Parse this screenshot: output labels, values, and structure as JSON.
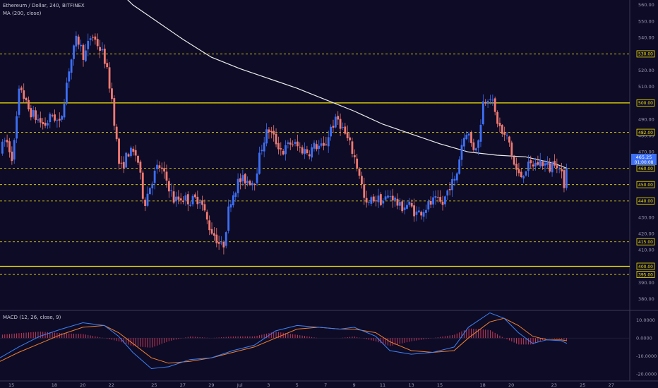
{
  "header": {
    "symbol": "Ethereum / Dollar, 240, BITFINEX",
    "indicator": "MA (200, close)"
  },
  "macd_panel": {
    "label": "MACD (12, 26, close, 9)"
  },
  "colors": {
    "background": "#0e0b26",
    "up_candle": "#3d6ff5",
    "down_candle": "#f07a72",
    "ma_line": "#ececec",
    "yellow_level": "#f2e300",
    "macd_line": "#3b82f6",
    "signal_line": "#f08030",
    "histogram": "#c83a5a"
  },
  "chart_data": [
    {
      "type": "candlestick",
      "title": "Ethereum / Dollar, 240, BITFINEX",
      "ylim": [
        373,
        563
      ],
      "y_ticks": [
        380,
        390,
        400,
        410,
        420,
        430,
        440,
        450,
        460,
        470,
        480,
        490,
        500,
        510,
        520,
        530,
        540,
        550,
        560
      ],
      "x_ticks": [
        "15",
        "18",
        "20",
        "22",
        "25",
        "27",
        "29",
        "Jul",
        "3",
        "5",
        "7",
        "9",
        "11",
        "13",
        "15",
        "18",
        "20",
        "23",
        "25",
        "27"
      ],
      "x_tick_days": [
        15,
        18,
        20,
        22,
        25,
        27,
        29,
        31,
        33,
        35,
        37,
        39,
        41,
        43,
        45,
        48,
        50,
        53,
        55,
        57
      ],
      "x_range_days": [
        14.2,
        58.3
      ],
      "last_day": 53.9,
      "current_price": "465.25",
      "countdown": "01:00:08",
      "price_anchors": [
        [
          14.2,
          470
        ],
        [
          14.6,
          478
        ],
        [
          15.1,
          466
        ],
        [
          15.6,
          512
        ],
        [
          16.1,
          497
        ],
        [
          16.6,
          492
        ],
        [
          17.3,
          486
        ],
        [
          17.9,
          493
        ],
        [
          18.4,
          486
        ],
        [
          19.0,
          520
        ],
        [
          19.6,
          540
        ],
        [
          20.1,
          528
        ],
        [
          20.6,
          542
        ],
        [
          21.1,
          535
        ],
        [
          21.5,
          528
        ],
        [
          22.0,
          505
        ],
        [
          22.6,
          458
        ],
        [
          23.2,
          470
        ],
        [
          23.8,
          468
        ],
        [
          24.3,
          438
        ],
        [
          24.8,
          452
        ],
        [
          25.3,
          462
        ],
        [
          25.9,
          452
        ],
        [
          26.4,
          440
        ],
        [
          26.9,
          442
        ],
        [
          27.6,
          440
        ],
        [
          28.2,
          442
        ],
        [
          28.8,
          425
        ],
        [
          29.3,
          418
        ],
        [
          29.8,
          410
        ],
        [
          30.3,
          440
        ],
        [
          30.9,
          452
        ],
        [
          31.4,
          453
        ],
        [
          32.0,
          452
        ],
        [
          32.6,
          476
        ],
        [
          33.0,
          484
        ],
        [
          33.4,
          478
        ],
        [
          34.0,
          470
        ],
        [
          34.6,
          476
        ],
        [
          35.2,
          472
        ],
        [
          35.8,
          470
        ],
        [
          36.3,
          474
        ],
        [
          36.9,
          472
        ],
        [
          37.4,
          486
        ],
        [
          37.9,
          490
        ],
        [
          38.4,
          480
        ],
        [
          38.9,
          470
        ],
        [
          39.4,
          456
        ],
        [
          39.8,
          436
        ],
        [
          40.4,
          442
        ],
        [
          41.0,
          440
        ],
        [
          41.6,
          444
        ],
        [
          42.2,
          436
        ],
        [
          42.8,
          438
        ],
        [
          43.4,
          432
        ],
        [
          44.0,
          436
        ],
        [
          44.6,
          440
        ],
        [
          45.2,
          438
        ],
        [
          45.7,
          450
        ],
        [
          46.1,
          452
        ],
        [
          46.5,
          474
        ],
        [
          46.9,
          484
        ],
        [
          47.3,
          472
        ],
        [
          47.7,
          476
        ],
        [
          48.0,
          500
        ],
        [
          48.5,
          506
        ],
        [
          48.9,
          492
        ],
        [
          49.4,
          480
        ],
        [
          49.8,
          478
        ],
        [
          50.2,
          462
        ],
        [
          50.6,
          454
        ],
        [
          51.0,
          460
        ],
        [
          51.5,
          462
        ],
        [
          52.1,
          464
        ],
        [
          52.7,
          460
        ],
        [
          53.1,
          466
        ],
        [
          53.4,
          458
        ],
        [
          53.7,
          451
        ],
        [
          53.9,
          465
        ]
      ],
      "ma200": [
        [
          22.8,
          566
        ],
        [
          23.5,
          560
        ],
        [
          25,
          551
        ],
        [
          27,
          539
        ],
        [
          29,
          528
        ],
        [
          31,
          521
        ],
        [
          33,
          515
        ],
        [
          35,
          509
        ],
        [
          37,
          502
        ],
        [
          39,
          495
        ],
        [
          41,
          487
        ],
        [
          43,
          481
        ],
        [
          45,
          475
        ],
        [
          47,
          470
        ],
        [
          49,
          468
        ],
        [
          51,
          467
        ],
        [
          53,
          463
        ],
        [
          53.9,
          460
        ]
      ],
      "levels": [
        {
          "value": 530,
          "label": "530.00",
          "style": "dashed"
        },
        {
          "value": 500,
          "label": "500.00",
          "style": "solid"
        },
        {
          "value": 482,
          "label": "482.00",
          "style": "dashed"
        },
        {
          "value": 460,
          "label": "460.00",
          "style": "dashed"
        },
        {
          "value": 450,
          "label": "450.00",
          "style": "dashed"
        },
        {
          "value": 440,
          "label": "440.00",
          "style": "dashed"
        },
        {
          "value": 415,
          "label": "415.00",
          "style": "dashed"
        },
        {
          "value": 400,
          "label": "400.00",
          "style": "solid"
        },
        {
          "value": 395,
          "label": "395.00",
          "style": "dashed"
        }
      ]
    },
    {
      "type": "line",
      "title": "MACD (12, 26, close, 9)",
      "ylim": [
        -23.5,
        15
      ],
      "y_ticks": [
        10,
        0,
        -10,
        -20
      ],
      "y_tick_labels": [
        "10.0000",
        "0.0000",
        "-10.0000",
        "-20.0000"
      ],
      "macd": [
        [
          14.2,
          -11
        ],
        [
          15.5,
          -5
        ],
        [
          17,
          1
        ],
        [
          18.5,
          5
        ],
        [
          20,
          8.5
        ],
        [
          21.5,
          7
        ],
        [
          22.5,
          1
        ],
        [
          23.5,
          -8
        ],
        [
          24.8,
          -17
        ],
        [
          26,
          -16
        ],
        [
          27.5,
          -12
        ],
        [
          29,
          -11
        ],
        [
          30.5,
          -7
        ],
        [
          32,
          -4
        ],
        [
          33.5,
          4
        ],
        [
          35,
          7
        ],
        [
          36.5,
          6
        ],
        [
          38,
          5
        ],
        [
          39,
          6
        ],
        [
          40.5,
          1
        ],
        [
          41.5,
          -7
        ],
        [
          43,
          -9
        ],
        [
          44.5,
          -8
        ],
        [
          46,
          -5
        ],
        [
          47,
          6
        ],
        [
          48.5,
          14
        ],
        [
          49.5,
          11
        ],
        [
          50.5,
          3
        ],
        [
          51.5,
          -3
        ],
        [
          52.5,
          -1
        ],
        [
          53.5,
          -1.5
        ],
        [
          53.9,
          -3
        ]
      ],
      "signal": [
        [
          14.2,
          -13
        ],
        [
          15.5,
          -8
        ],
        [
          17,
          -3
        ],
        [
          18.5,
          2
        ],
        [
          20,
          6
        ],
        [
          21.5,
          7
        ],
        [
          22.5,
          3
        ],
        [
          23.5,
          -3
        ],
        [
          24.8,
          -11
        ],
        [
          26,
          -14
        ],
        [
          27.5,
          -13
        ],
        [
          29,
          -11
        ],
        [
          30.5,
          -8
        ],
        [
          32,
          -5
        ],
        [
          33.5,
          0
        ],
        [
          35,
          5
        ],
        [
          36.5,
          6
        ],
        [
          38,
          5
        ],
        [
          39,
          5
        ],
        [
          40.5,
          3
        ],
        [
          41.5,
          -2
        ],
        [
          43,
          -7
        ],
        [
          44.5,
          -8
        ],
        [
          46,
          -7
        ],
        [
          47,
          0
        ],
        [
          48.5,
          9
        ],
        [
          49.5,
          11
        ],
        [
          50.5,
          7
        ],
        [
          51.5,
          1
        ],
        [
          52.5,
          -1
        ],
        [
          53.5,
          -1
        ],
        [
          53.9,
          -1.5
        ]
      ]
    }
  ]
}
